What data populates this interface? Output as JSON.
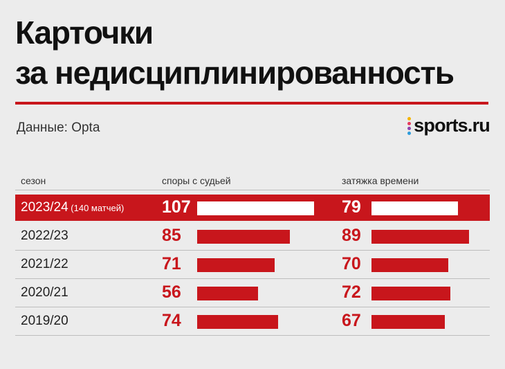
{
  "title_line1": "Карточки",
  "title_line2": "за недисциплинированность",
  "source": "Данные: Opta",
  "logo_text": "sports.ru",
  "accent_color": "#c8161c",
  "chart_data": {
    "type": "bar",
    "columns": [
      "сезон",
      "споры с судьей",
      "затяжка времени"
    ],
    "categories": [
      "2023/24",
      "2022/23",
      "2021/22",
      "2020/21",
      "2019/20"
    ],
    "notes": [
      "(140 матчей)",
      "",
      "",
      "",
      ""
    ],
    "highlighted": "2023/24",
    "series": [
      {
        "name": "споры с судьей",
        "values": [
          107,
          85,
          71,
          56,
          74
        ]
      },
      {
        "name": "затяжка времени",
        "values": [
          79,
          89,
          70,
          72,
          67
        ]
      }
    ]
  }
}
